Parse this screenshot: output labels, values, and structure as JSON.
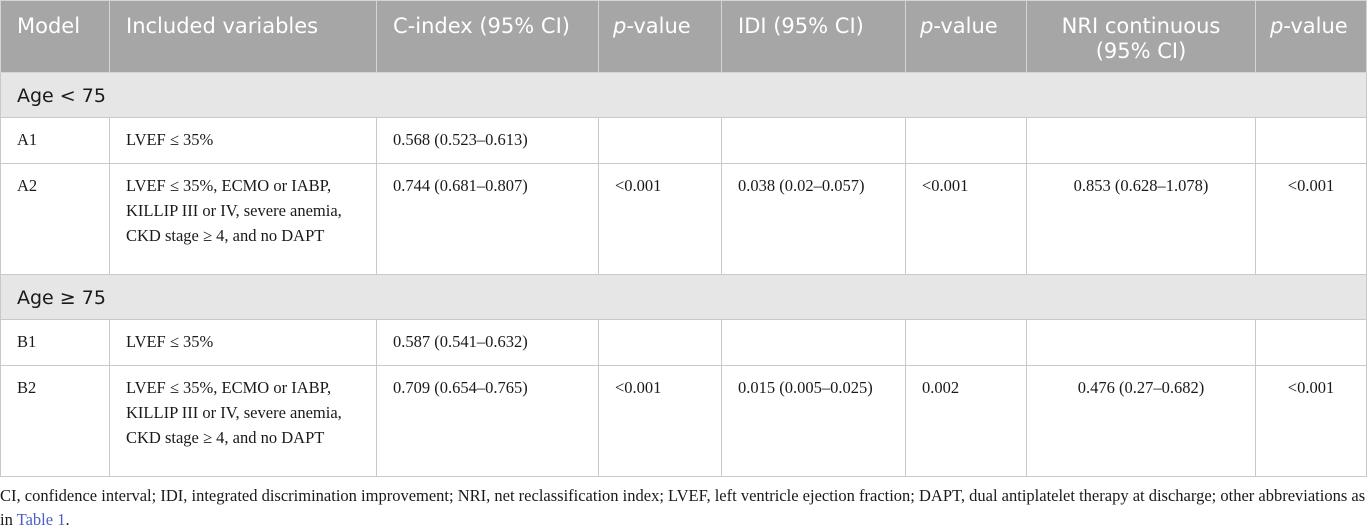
{
  "headers": {
    "model": "Model",
    "variables": "Included variables",
    "cindex": "C-index (95% CI)",
    "p_italic": "p",
    "p_rest": "-value",
    "idi": "IDI (95% CI)",
    "nri_line1": "NRI continuous",
    "nri_line2": "(95% CI)"
  },
  "sections": [
    {
      "label": "Age < 75",
      "rows": [
        {
          "model": "A1",
          "variables": "LVEF ≤ 35%",
          "cindex": "0.568 (0.523–0.613)",
          "p1": "",
          "idi": "",
          "p2": "",
          "nri": "",
          "p3": ""
        },
        {
          "model": "A2",
          "variables": "LVEF ≤ 35%, ECMO or IABP, KILLIP III or IV, severe anemia, CKD stage ≥ 4, and no DAPT",
          "cindex": "0.744 (0.681–0.807)",
          "p1": "<0.001",
          "idi": "0.038 (0.02–0.057)",
          "p2": "<0.001",
          "nri": "0.853 (0.628–1.078)",
          "p3": "<0.001"
        }
      ]
    },
    {
      "label": "Age ≥ 75",
      "rows": [
        {
          "model": "B1",
          "variables": "LVEF ≤ 35%",
          "cindex": "0.587 (0.541–0.632)",
          "p1": "",
          "idi": "",
          "p2": "",
          "nri": "",
          "p3": ""
        },
        {
          "model": "B2",
          "variables": "LVEF ≤ 35%, ECMO or IABP, KILLIP III or IV, severe anemia, CKD stage ≥ 4, and no DAPT",
          "cindex": "0.709 (0.654–0.765)",
          "p1": "<0.001",
          "idi": "0.015 (0.005–0.025)",
          "p2": "0.002",
          "nri": "0.476 (0.27–0.682)",
          "p3": "<0.001"
        }
      ]
    }
  ],
  "footnote": {
    "text": "CI, confidence interval; IDI, integrated discrimination improvement; NRI, net reclassification index; LVEF, left ventricle ejection fraction; DAPT, dual antiplatelet therapy at discharge; other abbreviations as in ",
    "link": "Table 1",
    "end": "."
  },
  "colors": {
    "header_bg": "#a6a6a6",
    "section_bg": "#e6e6e6",
    "link": "#4a5fc1"
  }
}
